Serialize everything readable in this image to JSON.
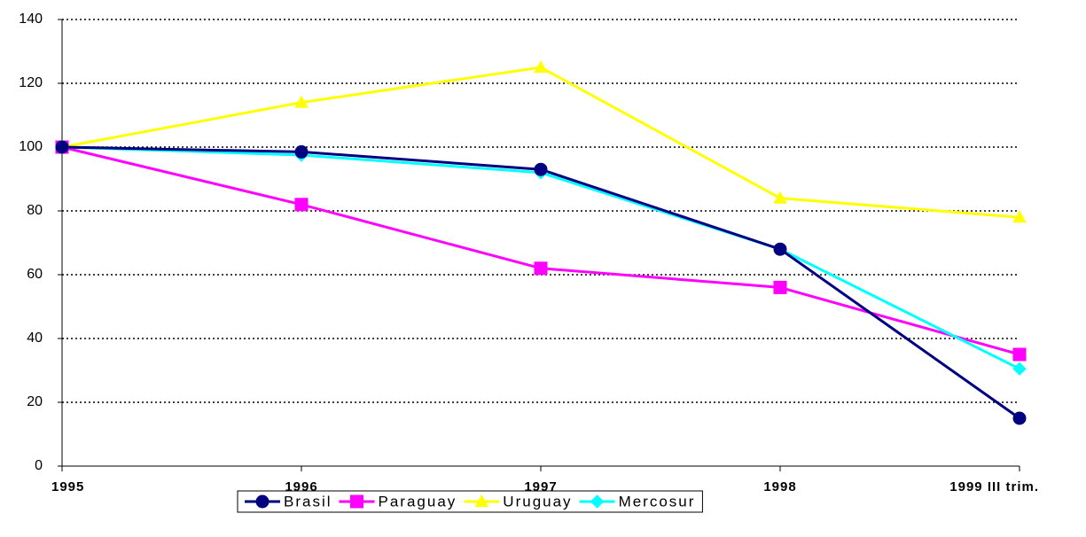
{
  "chart_data": {
    "type": "line",
    "categories": [
      "1995",
      "1996",
      "1997",
      "1998",
      "1999 III trim."
    ],
    "series": [
      {
        "name": "Brasil",
        "color": "#000080",
        "marker": "circle",
        "values": [
          100,
          98.5,
          93,
          68,
          15
        ]
      },
      {
        "name": "Paraguay",
        "color": "#ff00ff",
        "marker": "square",
        "values": [
          100,
          82,
          62,
          56,
          35
        ]
      },
      {
        "name": "Uruguay",
        "color": "#ffff00",
        "marker": "triangle",
        "values": [
          100,
          114,
          125,
          84,
          78
        ]
      },
      {
        "name": "Mercosur",
        "color": "#00ffff",
        "marker": "diamond",
        "values": [
          100,
          97.5,
          92,
          68,
          30.5
        ]
      }
    ],
    "ylim": [
      0,
      140
    ],
    "yticks": [
      0,
      20,
      40,
      60,
      80,
      100,
      120,
      140
    ],
    "grid": true,
    "legend": "bottom"
  }
}
